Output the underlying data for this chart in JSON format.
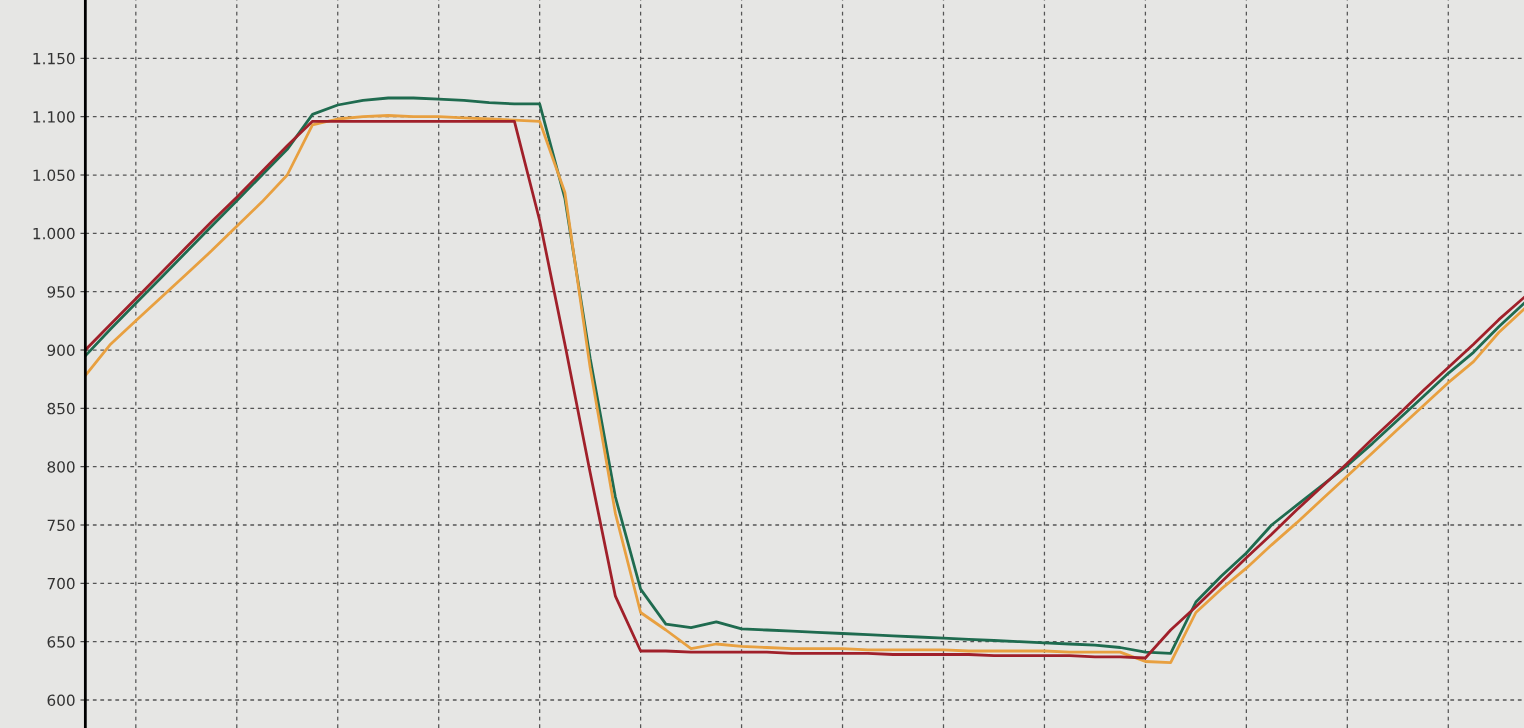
{
  "chart_data": {
    "type": "line",
    "categories": [
      null,
      null,
      null,
      null,
      null,
      null,
      null,
      null,
      null,
      null,
      null,
      null,
      null,
      null,
      null,
      null,
      null,
      null,
      null,
      null,
      null,
      null,
      null,
      null,
      null,
      null,
      null,
      null,
      null,
      null,
      null,
      null,
      null,
      null,
      null,
      null,
      null,
      null,
      null,
      null,
      null,
      null,
      null,
      null,
      null,
      null,
      null,
      null,
      null,
      null,
      null,
      null,
      null,
      null,
      null,
      null,
      null,
      null
    ],
    "series": [
      {
        "color": "#1f6b4f",
        "values": [
          895,
          918,
          940,
          962,
          984,
          1006,
          1028,
          1050,
          1072,
          1102,
          1110,
          1114,
          1116,
          1116,
          1115,
          1114,
          1112,
          1111,
          1111,
          1030,
          893,
          774,
          695,
          665,
          662,
          667,
          661,
          660,
          659,
          658,
          657,
          656,
          655,
          654,
          653,
          652,
          651,
          650,
          649,
          648,
          647,
          645,
          641,
          640,
          684,
          706,
          726,
          750,
          767,
          784,
          801,
          820,
          840,
          860,
          880,
          898,
          920,
          940
        ]
      },
      {
        "color": "#e8a040",
        "values": [
          878,
          905,
          925,
          945,
          965,
          985,
          1006,
          1027,
          1050,
          1093,
          1098,
          1100,
          1101,
          1100,
          1100,
          1099,
          1098,
          1097,
          1096,
          1035,
          885,
          760,
          675,
          660,
          644,
          648,
          646,
          645,
          644,
          644,
          644,
          643,
          643,
          643,
          643,
          642,
          642,
          642,
          642,
          641,
          641,
          641,
          633,
          632,
          675,
          695,
          713,
          733,
          752,
          772,
          792,
          812,
          832,
          852,
          872,
          890,
          915,
          935
        ]
      },
      {
        "color": "#a0202a",
        "values": [
          900,
          922,
          944,
          966,
          988,
          1010,
          1031,
          1053,
          1075,
          1096,
          1096,
          1096,
          1096,
          1096,
          1096,
          1096,
          1096,
          1096,
          1011,
          905,
          795,
          689,
          642,
          642,
          641,
          641,
          641,
          641,
          640,
          640,
          640,
          640,
          639,
          639,
          639,
          639,
          638,
          638,
          638,
          638,
          637,
          637,
          636,
          660,
          680,
          701,
          722,
          742,
          763,
          783,
          803,
          824,
          844,
          865,
          885,
          905,
          926,
          945
        ]
      }
    ],
    "ylim": [
      576,
      1200
    ],
    "yticks": [
      {
        "value": 600,
        "label": "600"
      },
      {
        "value": 650,
        "label": "650"
      },
      {
        "value": 700,
        "label": "700"
      },
      {
        "value": 750,
        "label": "750"
      },
      {
        "value": 800,
        "label": "800"
      },
      {
        "value": 850,
        "label": "850"
      },
      {
        "value": 900,
        "label": "900"
      },
      {
        "value": 950,
        "label": "950"
      },
      {
        "value": 1000,
        "label": "1.000"
      },
      {
        "value": 1050,
        "label": "1.050"
      },
      {
        "value": 1100,
        "label": "1.100"
      },
      {
        "value": 1150,
        "label": "1.150"
      }
    ],
    "tick_labels": "y",
    "grid": true,
    "legend": false
  }
}
